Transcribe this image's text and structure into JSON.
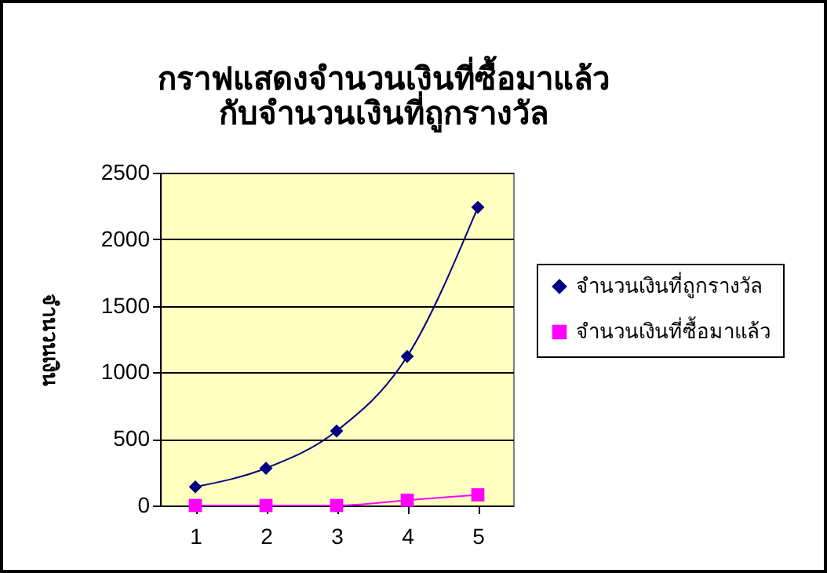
{
  "chart_data": {
    "type": "line",
    "title": "กราฟแสดงจำนวนเงินที่ซื้อมาแล้ว\nกับจำนวนเงินที่ถูกรางวัล",
    "ylabel": "จำนวนเงิน",
    "categories": [
      "1",
      "2",
      "3",
      "4",
      "5"
    ],
    "series": [
      {
        "name": "จำนวนเงินที่ถูกรางวัล",
        "color": "#000080",
        "marker": "diamond",
        "values": [
          140,
          280,
          560,
          1120,
          2240
        ]
      },
      {
        "name": "จำนวนเงินที่ซื้อมาแล้ว",
        "color": "#ff00ff",
        "marker": "square",
        "values": [
          0,
          0,
          0,
          40,
          80
        ]
      }
    ],
    "ylim": [
      0,
      2500
    ],
    "yticks": [
      0,
      500,
      1000,
      1500,
      2000,
      2500
    ],
    "grid": "y",
    "legend": "right",
    "line_style": "solid"
  }
}
